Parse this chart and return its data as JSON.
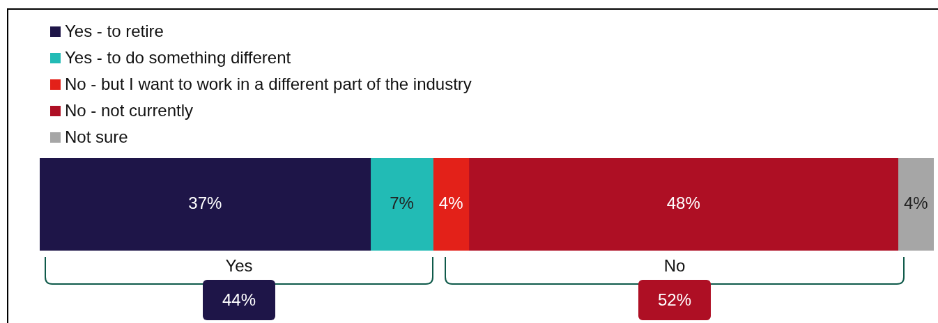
{
  "chart_data": {
    "type": "bar",
    "orientation": "horizontal",
    "stacked": true,
    "categories": [
      null
    ],
    "series": [
      {
        "name": "Yes - to retire",
        "color": "#1e1548",
        "values": [
          37
        ],
        "value_labels": [
          "37%"
        ]
      },
      {
        "name": "Yes - to do something different",
        "color": "#22bbb5",
        "values": [
          7
        ],
        "value_labels": [
          "7%"
        ]
      },
      {
        "name": "No - but I want to work in a different part of the industry",
        "color": "#e32119",
        "values": [
          4
        ],
        "value_labels": [
          "4%"
        ]
      },
      {
        "name": "No - not currently",
        "color": "#ae0f24",
        "values": [
          48
        ],
        "value_labels": [
          "48%"
        ]
      },
      {
        "name": "Not sure",
        "color": "#a6a6a6",
        "values": [
          4
        ],
        "value_labels": [
          "4%"
        ]
      }
    ],
    "legend": "top left",
    "tick_labels": false,
    "annotations": [
      "Yes",
      "No",
      "44%",
      "52%"
    ]
  }
}
